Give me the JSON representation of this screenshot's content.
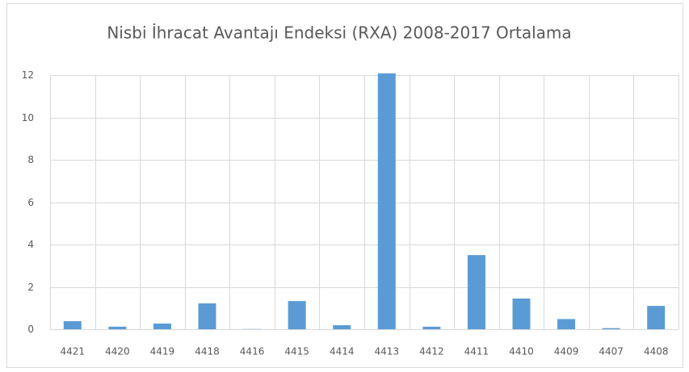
{
  "chart_data": {
    "type": "bar",
    "title": "Nisbi İhracat Avantajı Endeksi (RXA) 2008-2017 Ortalama",
    "categories": [
      "4421",
      "4420",
      "4419",
      "4418",
      "4416",
      "4415",
      "4414",
      "4413",
      "4412",
      "4411",
      "4410",
      "4409",
      "4407",
      "4408"
    ],
    "values": [
      0.38,
      0.12,
      0.27,
      1.22,
      0.01,
      1.33,
      0.19,
      12.08,
      0.12,
      3.5,
      1.45,
      0.48,
      0.05,
      1.1
    ],
    "color": "#5b9bd5",
    "ylim": [
      0,
      12
    ],
    "yticks": [
      0,
      2,
      4,
      6,
      8,
      10,
      12
    ],
    "grid": true
  }
}
